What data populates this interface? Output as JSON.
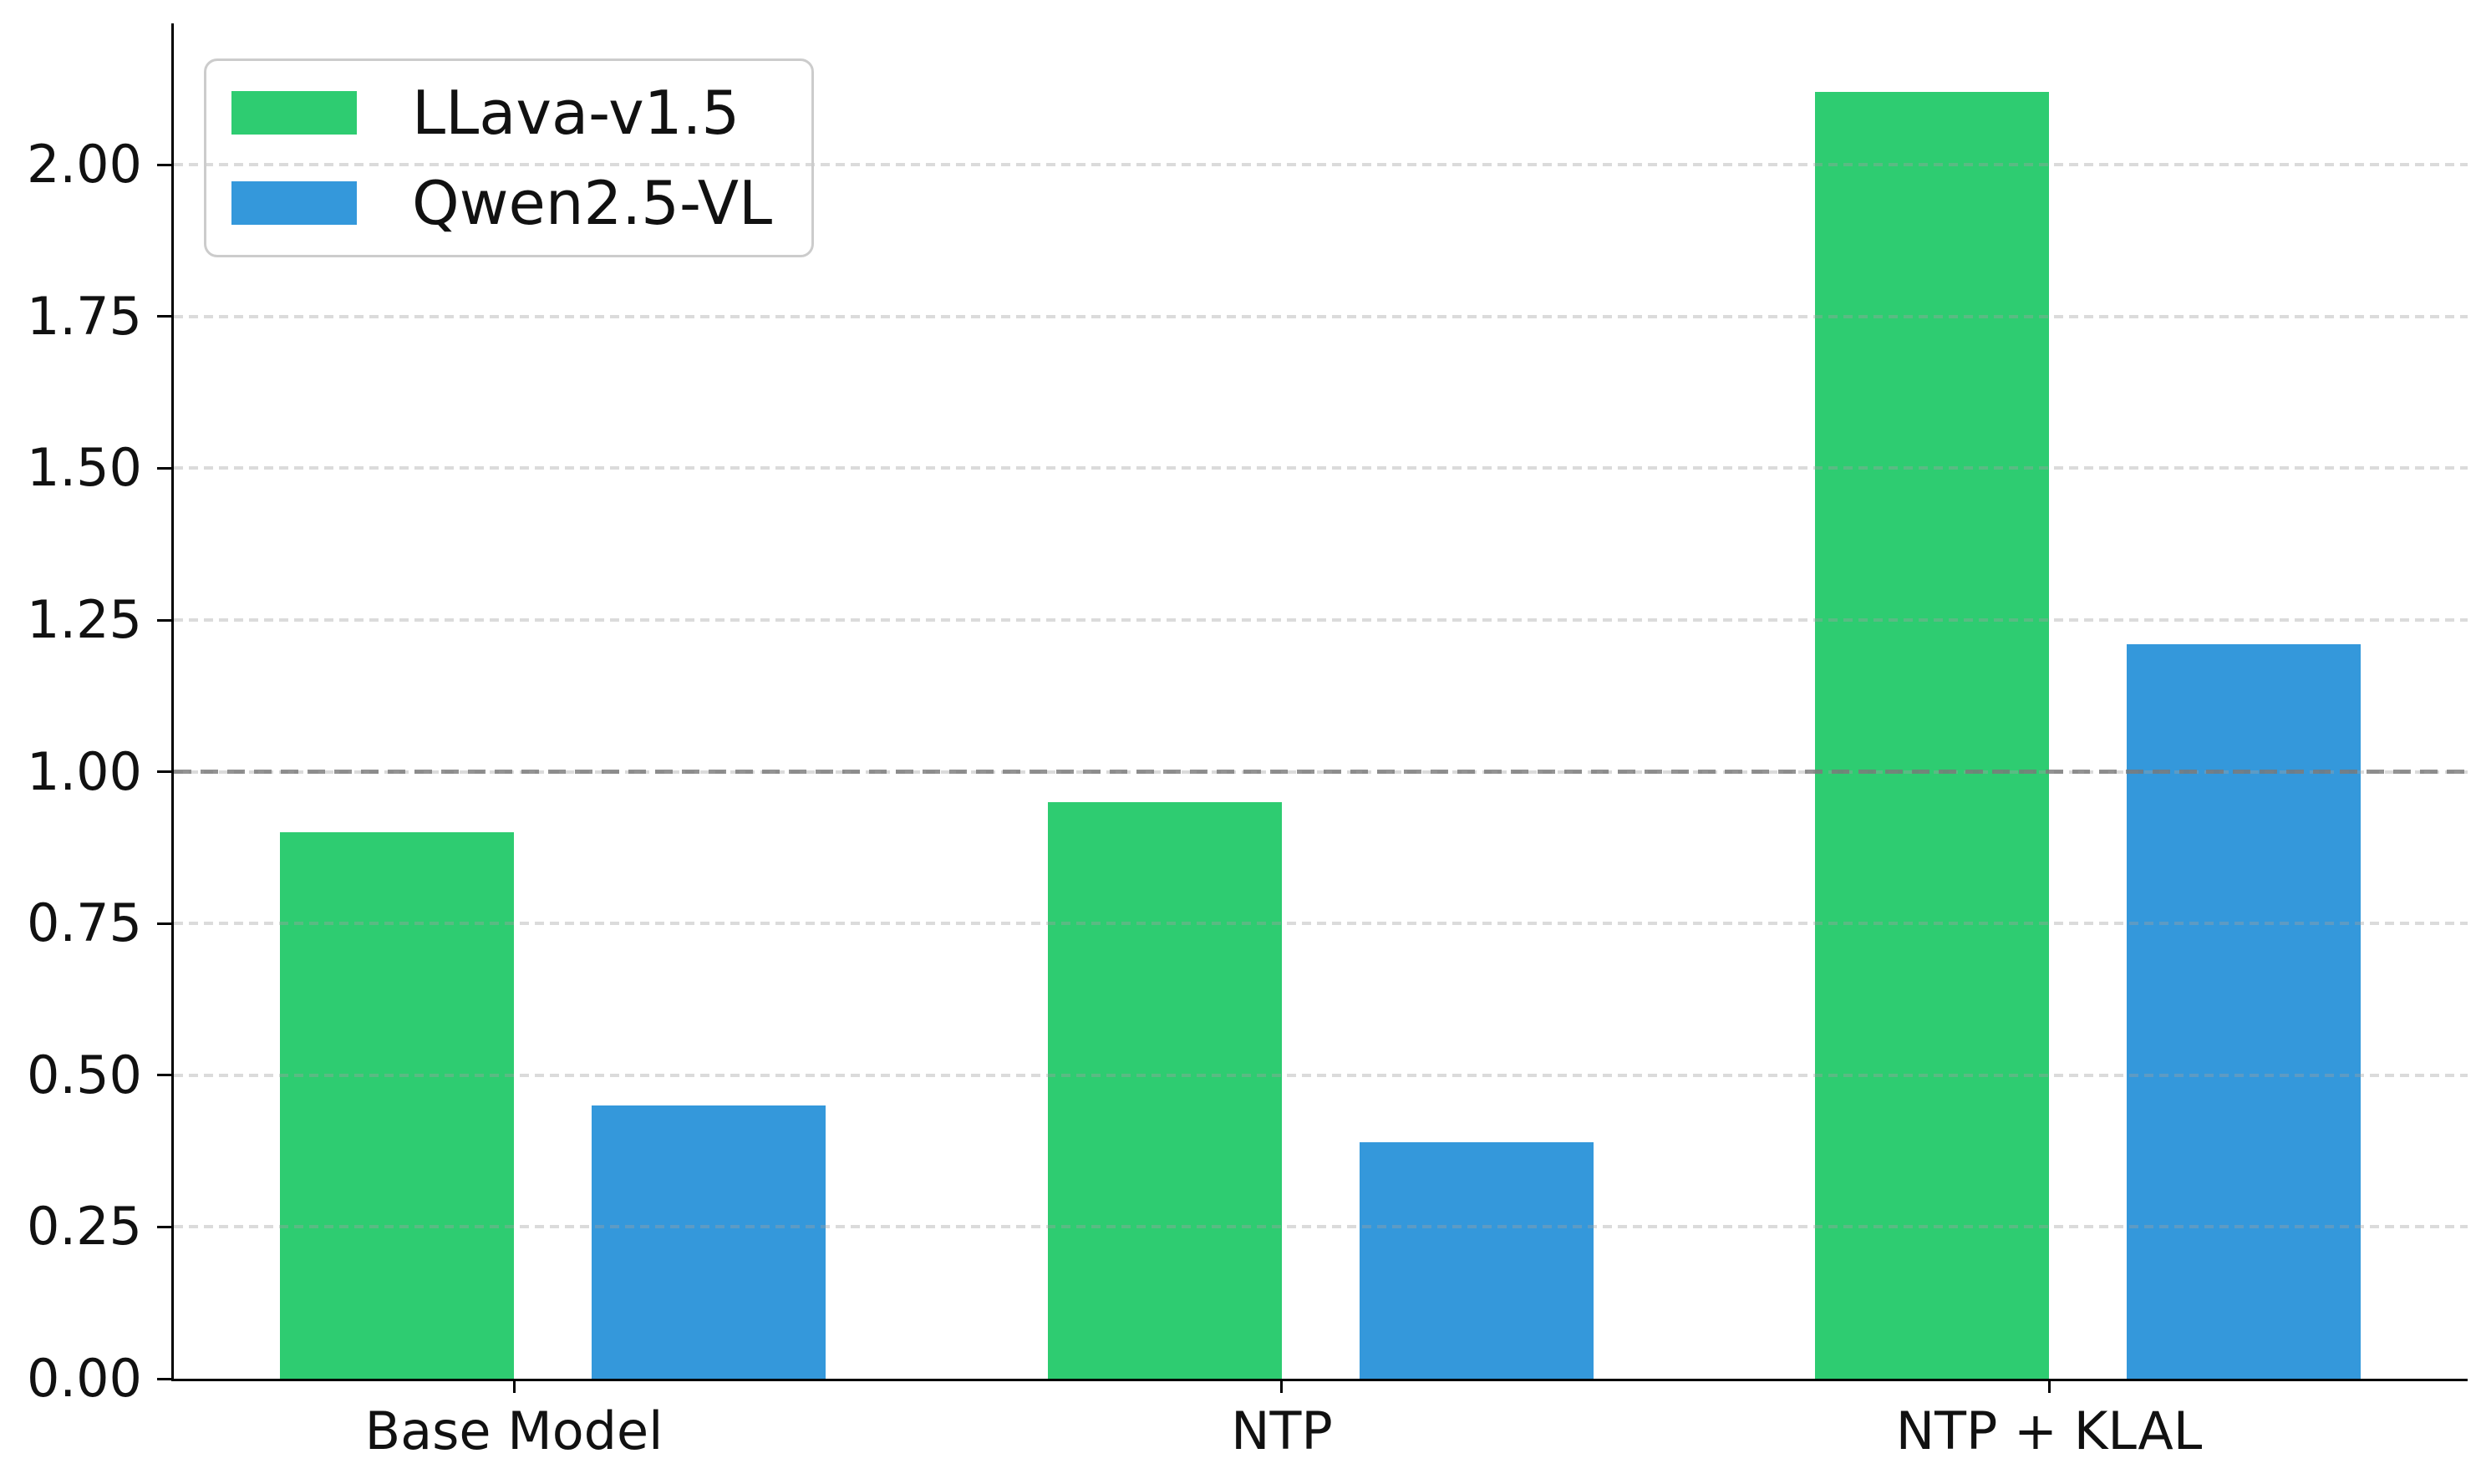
{
  "chart_data": {
    "type": "bar",
    "title": "",
    "xlabel": "",
    "ylabel": "",
    "categories": [
      "Base Model",
      "NTP",
      "NTP + KLAL"
    ],
    "series": [
      {
        "name": "LLava-v1.5",
        "color": "#2ecc71",
        "values": [
          0.9,
          0.95,
          2.12
        ]
      },
      {
        "name": "Qwen2.5-VL",
        "color": "#3498db",
        "values": [
          0.45,
          0.39,
          1.21
        ]
      }
    ],
    "ylim": [
      0,
      2.233
    ],
    "ytick_values": [
      0.0,
      0.25,
      0.5,
      0.75,
      1.0,
      1.25,
      1.5,
      1.75,
      2.0
    ],
    "ytick_labels": [
      "0.00",
      "0.25",
      "0.50",
      "0.75",
      "1.00",
      "1.25",
      "1.50",
      "1.75",
      "2.00"
    ],
    "grid": {
      "axis": "y",
      "style": "dashed",
      "color": "#e3e3e3",
      "drawn_over_bars": true
    },
    "reference_line": {
      "value": 1.0,
      "style": "dashed",
      "color": "#9a9a9a"
    },
    "legend": {
      "position": "upper left",
      "entries": [
        "LLava-v1.5",
        "Qwen2.5-VL"
      ]
    },
    "spine_color": "#000000",
    "background": "#ffffff"
  }
}
